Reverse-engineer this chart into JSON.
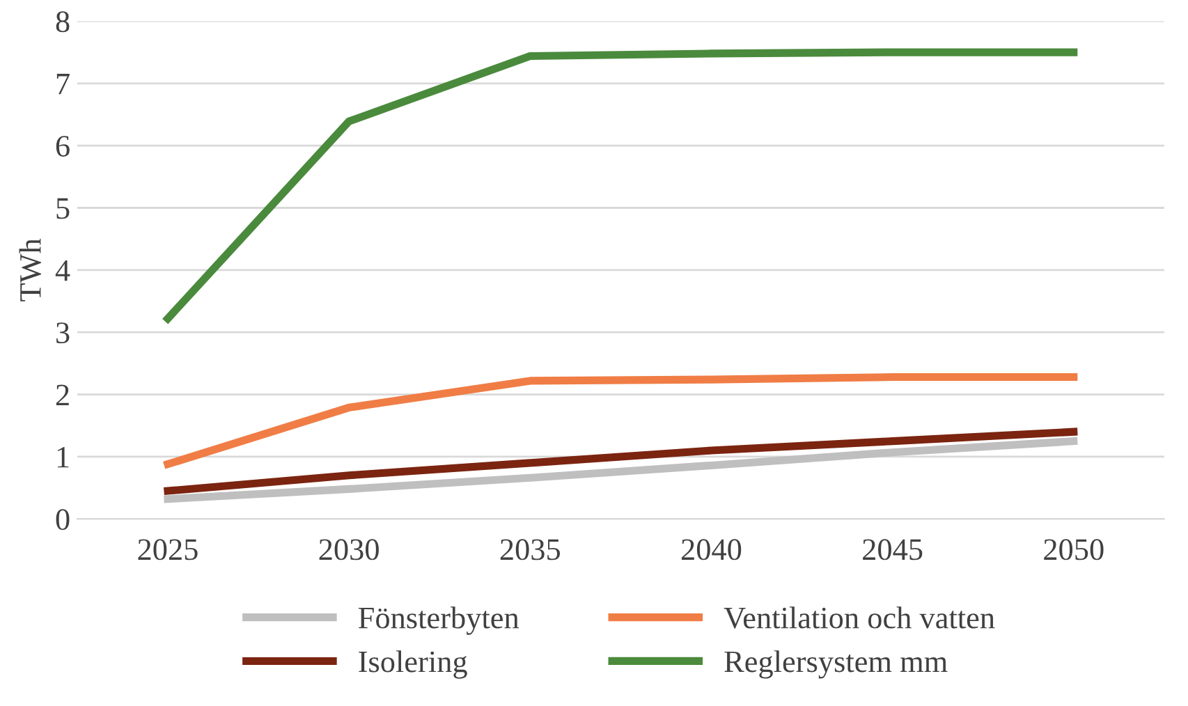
{
  "chart_data": {
    "type": "line",
    "ylabel": "TWh",
    "categories": [
      "2025",
      "2030",
      "2035",
      "2040",
      "2045",
      "2050"
    ],
    "series": [
      {
        "name": "Fönsterbyten",
        "color": "#bfbfbf",
        "values": [
          0.32,
          0.48,
          0.66,
          0.86,
          1.07,
          1.25
        ]
      },
      {
        "name": "Isolering",
        "color": "#7b2410",
        "values": [
          0.45,
          0.7,
          0.9,
          1.1,
          1.25,
          1.4
        ]
      },
      {
        "name": "Ventilation och vatten",
        "color": "#f07d45",
        "values": [
          0.88,
          1.79,
          2.22,
          2.24,
          2.28,
          2.28
        ]
      },
      {
        "name": "Reglersystem mm",
        "color": "#4a8a3c",
        "values": [
          3.22,
          6.39,
          7.44,
          7.48,
          7.5,
          7.5
        ]
      }
    ],
    "ylim": [
      0,
      8
    ],
    "yticks": [
      0,
      1,
      2,
      3,
      4,
      5,
      6,
      7,
      8
    ],
    "grid": "y",
    "legend": "bottom",
    "marker": "none",
    "line_style": "solid"
  }
}
